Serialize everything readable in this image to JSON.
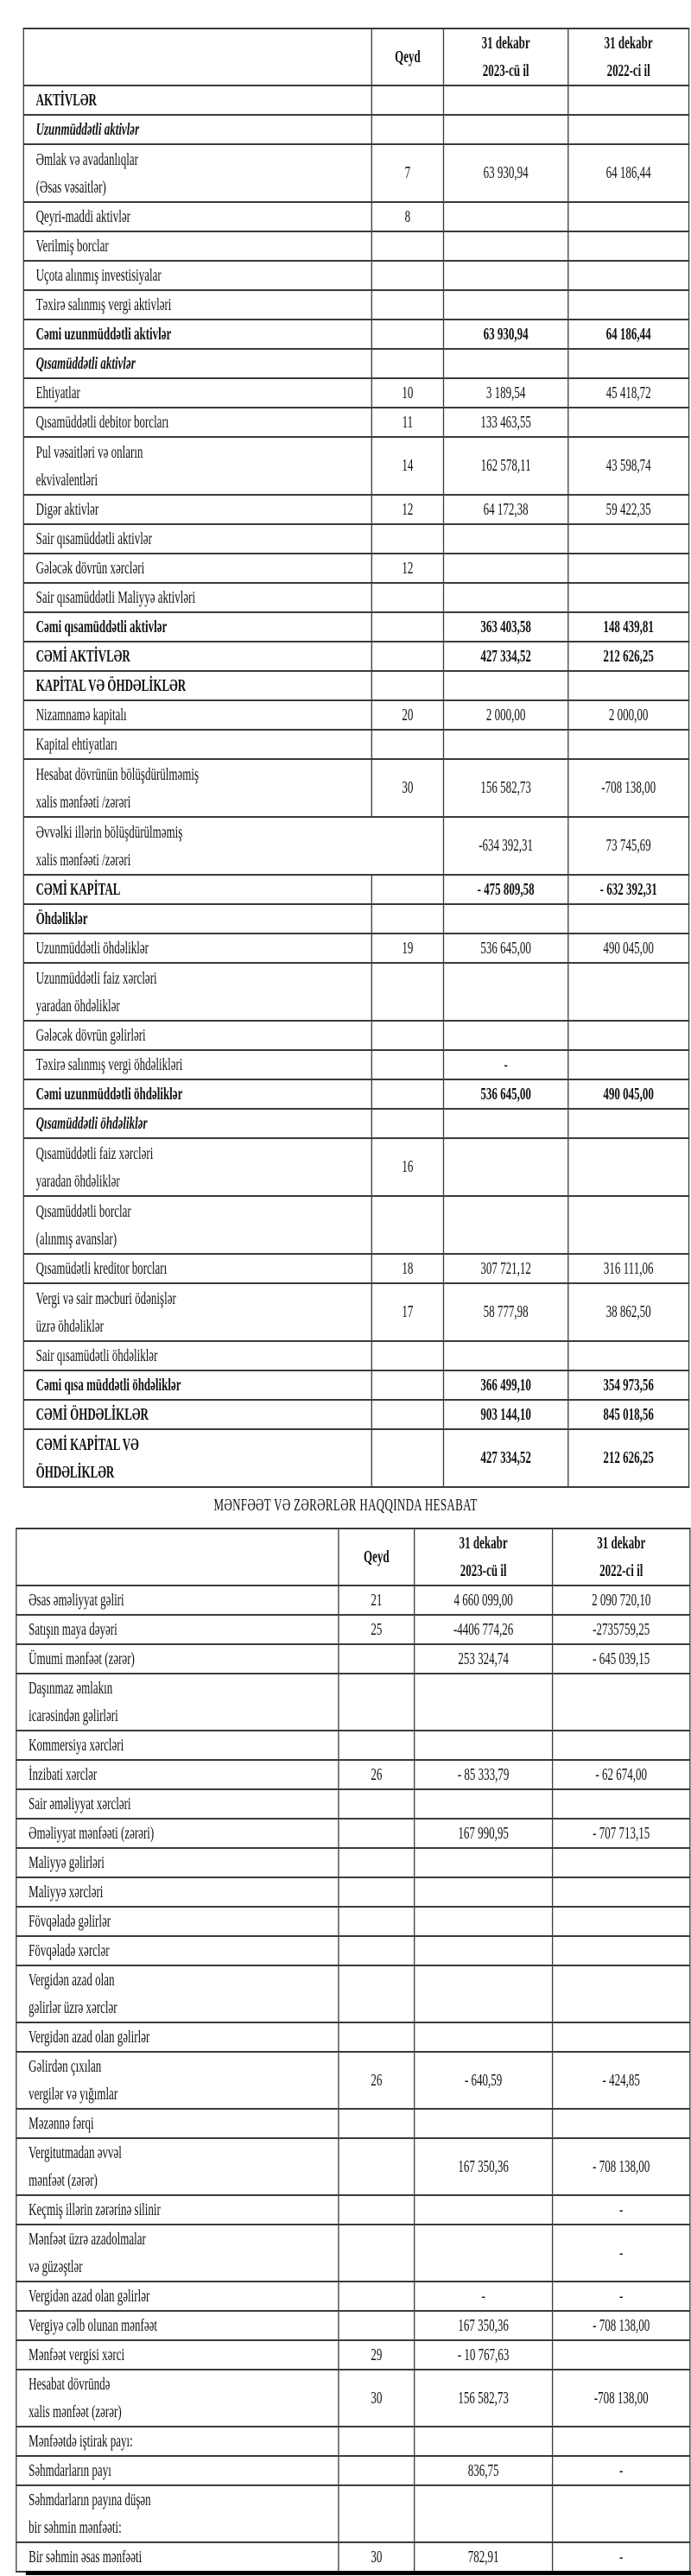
{
  "balance_sheet": {
    "headers": [
      "",
      "Qeyd",
      "31 dekabr\n2023-cü il",
      "31 dekabr\n2022-ci il"
    ],
    "rows": [
      {
        "label": "AKTİVLƏR",
        "note": "",
        "v2023": "",
        "v2022": "",
        "style": "bold"
      },
      {
        "label": "Uzunmüddətli aktivlər",
        "note": "",
        "v2023": "",
        "v2022": "",
        "style": "italic"
      },
      {
        "label": "Əmlak və avadanlıqlar\n(Əsas vəsaitlər)",
        "note": "7",
        "v2023": "63 930,94",
        "v2022": "64 186,44"
      },
      {
        "label": "Qeyri-maddi aktivlər",
        "note": "8",
        "v2023": "",
        "v2022": ""
      },
      {
        "label": "Verilmiş borclar",
        "note": "",
        "v2023": "",
        "v2022": ""
      },
      {
        "label": "Uçota alınmış investisiyalar",
        "note": "",
        "v2023": "",
        "v2022": ""
      },
      {
        "label": "Təxirə salınmış vergi aktivləri",
        "note": "",
        "v2023": "",
        "v2022": ""
      },
      {
        "label": "Cəmi uzunmüddətli aktivlər",
        "note": "",
        "v2023": "63 930,94",
        "v2022": "64 186,44",
        "style": "bold"
      },
      {
        "label": "Qısamüddətli aktivlər",
        "note": "",
        "v2023": "",
        "v2022": "",
        "style": "italic"
      },
      {
        "label": "Ehtiyatlar",
        "note": "10",
        "v2023": "3 189,54",
        "v2022": "45 418,72"
      },
      {
        "label": "Qısamüddətli debitor borcları",
        "note": "11",
        "v2023": "133 463,55",
        "v2022": ""
      },
      {
        "label": "Pul vəsaitləri və onların\nekvivalentləri",
        "note": "14",
        "v2023": "162 578,11",
        "v2022": "43 598,74"
      },
      {
        "label": "Digər aktivlər",
        "note": "12",
        "v2023": "64 172,38",
        "v2022": "59 422,35"
      },
      {
        "label": "Sair qısamüddətli aktivlər",
        "note": "",
        "v2023": "",
        "v2022": ""
      },
      {
        "label": "Gələcək dövrün xərcləri",
        "note": "12",
        "v2023": "",
        "v2022": ""
      },
      {
        "label": "Sair qısamüddətli Maliyyə aktivləri",
        "note": "",
        "v2023": "",
        "v2022": ""
      },
      {
        "label": "Cəmi qısamüddətli aktivlər",
        "note": "",
        "v2023": "363 403,58",
        "v2022": "148 439,81",
        "style": "bold"
      },
      {
        "label": "CƏMİ AKTİVLƏR",
        "note": "",
        "v2023": "427 334,52",
        "v2022": "212 626,25",
        "style": "bold"
      },
      {
        "label": "KAPİTAL VƏ ÖHDƏLİKLƏR",
        "note": "",
        "v2023": "",
        "v2022": "",
        "style": "bold"
      },
      {
        "label": "Nizamnamə kapitalı",
        "note": "20",
        "v2023": "2 000,00",
        "v2022": "2 000,00"
      },
      {
        "label": "Kapital ehtiyatları",
        "note": "",
        "v2023": "",
        "v2022": ""
      },
      {
        "label": "Hesabat dövrünün bölüşdürülməmiş\nxalis mənfəəti /zərəri",
        "note": "30",
        "v2023": "156 582,73",
        "v2022": "-708 138,00"
      },
      {
        "label": "Əvvəlki illərin bölüşdürülməmiş\nxalis mənfəəti /zərəri",
        "note": null,
        "v2023": "-634 392,31",
        "v2022": "73 745,69",
        "span": true
      },
      {
        "label": "CƏMİ KAPİTAL",
        "note": "",
        "v2023": "- 475 809,58",
        "v2022": "- 632 392,31",
        "style": "bold"
      },
      {
        "label": "Öhdəliklər",
        "note": "",
        "v2023": "",
        "v2022": "",
        "style": "bold"
      },
      {
        "label": "Uzunmüddətli öhdəliklər",
        "note": "19",
        "v2023": "536 645,00",
        "v2022": "490 045,00"
      },
      {
        "label": "Uzunmüddətli faiz xərcləri\nyaradan öhdəliklər",
        "note": "",
        "v2023": "",
        "v2022": ""
      },
      {
        "label": "Gələcək dövrün gəlirləri",
        "note": "",
        "v2023": "",
        "v2022": ""
      },
      {
        "label": "Təxirə salınmış vergi öhdəlikləri",
        "note": "",
        "v2023": "-",
        "v2022": ""
      },
      {
        "label": "Cəmi uzunmüddətli öhdəliklər",
        "note": "",
        "v2023": "536 645,00",
        "v2022": "490 045,00",
        "style": "bold"
      },
      {
        "label": "Qısamüddətli öhdəliklər",
        "note": "",
        "v2023": "",
        "v2022": "",
        "style": "italic"
      },
      {
        "label": "Qısamüddətli faiz xərcləri\nyaradan öhdəliklər",
        "note": "16",
        "v2023": "",
        "v2022": ""
      },
      {
        "label": "Qısamüddətli borclar\n(alınmış avanslar)",
        "note": "",
        "v2023": "",
        "v2022": ""
      },
      {
        "label": "Qısamüdətli kreditor borcları",
        "note": "18",
        "v2023": "307 721,12",
        "v2022": "316 111,06"
      },
      {
        "label": "Vergi və sair məcburi ödənişlər\n üzrə öhdəliklər",
        "note": "17",
        "v2023": "58 777,98",
        "v2022": "38 862,50"
      },
      {
        "label": "Sair qısamüdətli öhdəliklər",
        "note": "",
        "v2023": "",
        "v2022": ""
      },
      {
        "label": "Cəmi qısa müddətli öhdəliklər",
        "note": "",
        "v2023": "366 499,10",
        "v2022": "354 973,56",
        "style": "bold"
      },
      {
        "label": "CƏMİ ÖHDƏLİKLƏR",
        "note": "",
        "v2023": "903 144,10",
        "v2022": "845 018,56",
        "style": "bold"
      },
      {
        "label": "CƏMİ KAPİTAL VƏ\nÖHDƏLİKLƏR",
        "note": "",
        "v2023": "427 334,52",
        "v2022": "212 626,25",
        "style": "bold"
      }
    ]
  },
  "income_statement": {
    "title": "MƏNFƏƏT VƏ ZƏRƏRLƏR HAQQINDA HESABAT",
    "headers": [
      "",
      "Qeyd",
      "31 dekabr\n2023-cü il",
      "31 dekabr\n2022-ci il"
    ],
    "rows": [
      {
        "label": "Əsas əməliyyat gəliri",
        "note": "21",
        "v2023": "4 660 099,00",
        "v2022": "2 090 720,10"
      },
      {
        "label": "Satışın maya dəyəri",
        "note": "25",
        "v2023": "-4406 774,26",
        "v2022": "-2735759,25"
      },
      {
        "label": "Ümumi mənfəət (zərər)",
        "note": "",
        "v2023": "253 324,74",
        "v2022": "- 645 039,15"
      },
      {
        "label": "Daşınmaz əmlakın\n icarəsindən gəlirləri",
        "note": "",
        "v2023": "",
        "v2022": ""
      },
      {
        "label": "Kommersiya xərcləri",
        "note": "",
        "v2023": "",
        "v2022": ""
      },
      {
        "label": "İnzibati xərclər",
        "note": "26",
        "v2023": "- 85 333,79",
        "v2022": "- 62 674,00"
      },
      {
        "label": "Sair əməliyyat xərcləri",
        "note": "",
        "v2023": "",
        "v2022": ""
      },
      {
        "label": "Əməliyyat mənfəəti (zərəri)",
        "note": "",
        "v2023": "167 990,95",
        "v2022": "- 707 713,15"
      },
      {
        "label": "Maliyyə gəlirləri",
        "note": "",
        "v2023": "",
        "v2022": ""
      },
      {
        "label": "Maliyyə xərcləri",
        "note": "",
        "v2023": "",
        "v2022": ""
      },
      {
        "label": "Fövqəladə gəlirlər",
        "note": "",
        "v2023": "",
        "v2022": ""
      },
      {
        "label": "Fövqəladə xərclər",
        "note": "",
        "v2023": "",
        "v2022": ""
      },
      {
        "label": "Vergidən azad olan\ngəlirlər üzrə xərclər",
        "note": "",
        "v2023": "",
        "v2022": ""
      },
      {
        "label": "Vergidən azad olan gəlirlər",
        "note": "",
        "v2023": "",
        "v2022": ""
      },
      {
        "label": "Gəlirdən çıxılan\nvergilər və yığımlar",
        "note": "26",
        "v2023": "- 640,59",
        "v2022": "- 424,85"
      },
      {
        "label": "Məzənnə fərqi",
        "note": "",
        "v2023": "",
        "v2022": ""
      },
      {
        "label": "Vergitutmadan əvvəl\nmənfəət (zərər)",
        "note": "",
        "v2023": "167 350,36",
        "v2022": "- 708 138,00"
      },
      {
        "label": "Keçmiş illərin zərərinə silinir",
        "note": "",
        "v2023": "",
        "v2022": "-"
      },
      {
        "label": "Mənfəət üzrə azadolmalar\nvə güzəştlər",
        "note": "",
        "v2023": "",
        "v2022": "-"
      },
      {
        "label": "Vergidən azad olan gəlirlər",
        "note": "",
        "v2023": "-",
        "v2022": "-"
      },
      {
        "label": "Vergiyə cəlb olunan mənfəət",
        "note": "",
        "v2023": "167 350,36",
        "v2022": "- 708 138,00"
      },
      {
        "label": "Mənfəət vergisi xərci",
        "note": "29",
        "v2023": "- 10 767,63",
        "v2022": ""
      },
      {
        "label": "Hesabat dövründə\nxalis mənfəət (zərər)",
        "note": "30",
        "v2023": "156 582,73",
        "v2022": "-708 138,00"
      },
      {
        "label": "Mənfəətdə iştirak payı:",
        "note": "",
        "v2023": "",
        "v2022": ""
      },
      {
        "label": "Səhmdarların payı",
        "note": "",
        "v2023": "836,75",
        "v2022": "-"
      },
      {
        "label": "Səhmdarların payına düşən\nbir səhmin mənfəəti:",
        "note": "",
        "v2023": "",
        "v2022": ""
      },
      {
        "label": "Bir səhmin əsas mənfəəti",
        "note": "30",
        "v2023": "782,91",
        "v2022": "-"
      }
    ]
  }
}
